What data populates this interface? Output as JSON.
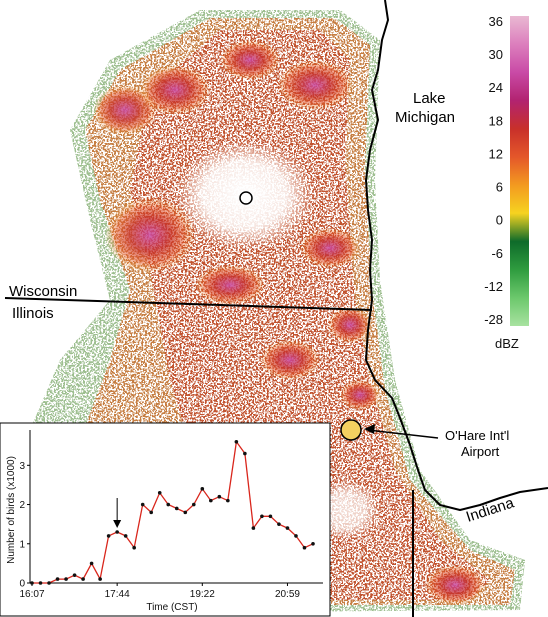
{
  "map": {
    "labels": {
      "lake_line1": "Lake",
      "lake_line2": "Michigan",
      "wisconsin": "Wisconsin",
      "illinois": "Illinois",
      "ohare_line1": "O'Hare Int'l",
      "ohare_line2": "Airport",
      "indiana": "Indiana"
    },
    "colors": {
      "state_lines": "#000000",
      "airport_marker": "#f3d060",
      "radar_site": "#ffffff"
    }
  },
  "colorbar": {
    "unit": "dBZ",
    "ticks": [
      "36",
      "30",
      "24",
      "18",
      "12",
      "6",
      "0",
      "-6",
      "-12",
      "-28"
    ],
    "stops": [
      "#e9b8d2",
      "#dc7fbd",
      "#c94aa6",
      "#b22370",
      "#c8302a",
      "#e4572a",
      "#f39a20",
      "#f6d320",
      "#0e6b2a",
      "#2f9c3f",
      "#6cc86c",
      "#a8e2a0"
    ]
  },
  "chart_data": {
    "type": "line",
    "xlabel": "Time (CST)",
    "ylabel": "Number of birds (x1000)",
    "xticks": [
      "16:07",
      "17:44",
      "19:22",
      "20:59"
    ],
    "yticks": [
      "0",
      "1",
      "2",
      "3"
    ],
    "ylim": [
      0,
      3.9
    ],
    "annotation": "arrow at 17:44",
    "line_color": "#d9261c",
    "marker_color": "#111111",
    "x": [
      "16:07",
      "16:17",
      "16:27",
      "16:36",
      "16:46",
      "16:56",
      "17:05",
      "17:15",
      "17:25",
      "17:34",
      "17:44",
      "17:54",
      "18:04",
      "18:13",
      "18:23",
      "18:33",
      "18:42",
      "18:52",
      "19:02",
      "19:12",
      "19:22",
      "19:31",
      "19:41",
      "19:51",
      "20:01",
      "20:10",
      "20:20",
      "20:30",
      "20:39",
      "20:49",
      "20:59",
      "21:09",
      "21:18",
      "21:28"
    ],
    "values": [
      0.0,
      0.0,
      0.0,
      0.1,
      0.1,
      0.2,
      0.1,
      0.5,
      0.1,
      1.2,
      1.3,
      1.2,
      0.9,
      2.0,
      1.8,
      2.3,
      2.0,
      1.9,
      1.8,
      2.0,
      2.4,
      2.1,
      2.2,
      2.1,
      3.6,
      3.3,
      1.4,
      1.7,
      1.7,
      1.5,
      1.4,
      1.2,
      0.9,
      1.0
    ]
  }
}
